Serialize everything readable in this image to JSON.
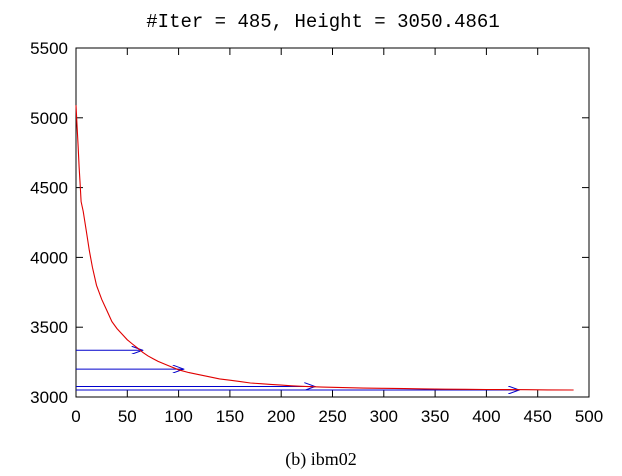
{
  "chart_data": {
    "type": "line",
    "title": "#Iter = 485, Height = 3050.4861",
    "caption": "(b) ibm02",
    "xlabel": "",
    "ylabel": "",
    "xlim": [
      0,
      500
    ],
    "ylim": [
      3000,
      5500
    ],
    "x_ticks": [
      0,
      50,
      100,
      150,
      200,
      250,
      300,
      350,
      400,
      450,
      500
    ],
    "y_ticks": [
      3000,
      3500,
      4000,
      4500,
      5000,
      5500
    ],
    "grid": false,
    "legend": "none",
    "colors": {
      "curve": "#e00000",
      "arrows": "#0000cc",
      "axes": "#000000"
    },
    "series": [
      {
        "x": [
          0,
          1,
          2,
          3,
          4,
          5,
          7,
          10,
          13,
          16,
          20,
          25,
          30,
          35,
          40,
          45,
          50,
          55,
          60,
          65,
          70,
          75,
          80,
          90,
          100,
          110,
          120,
          130,
          140,
          150,
          160,
          170,
          180,
          190,
          200,
          210,
          220,
          230,
          240,
          260,
          280,
          300,
          320,
          340,
          360,
          380,
          400,
          420,
          440,
          460,
          485
        ],
        "y": [
          5090,
          4950,
          4800,
          4650,
          4530,
          4400,
          4330,
          4190,
          4050,
          3930,
          3800,
          3700,
          3620,
          3540,
          3490,
          3450,
          3410,
          3380,
          3350,
          3320,
          3295,
          3275,
          3255,
          3225,
          3195,
          3175,
          3160,
          3145,
          3130,
          3120,
          3110,
          3100,
          3095,
          3090,
          3085,
          3080,
          3077,
          3074,
          3071,
          3067,
          3064,
          3062,
          3060,
          3058,
          3056,
          3055,
          3054,
          3053,
          3052,
          3051,
          3050.5
        ]
      }
    ],
    "arrows": [
      {
        "y": 3335,
        "x_end": 65
      },
      {
        "y": 3200,
        "x_end": 105
      },
      {
        "y": 3075,
        "x_end": 233
      },
      {
        "y": 3050,
        "x_end": 432
      }
    ]
  }
}
